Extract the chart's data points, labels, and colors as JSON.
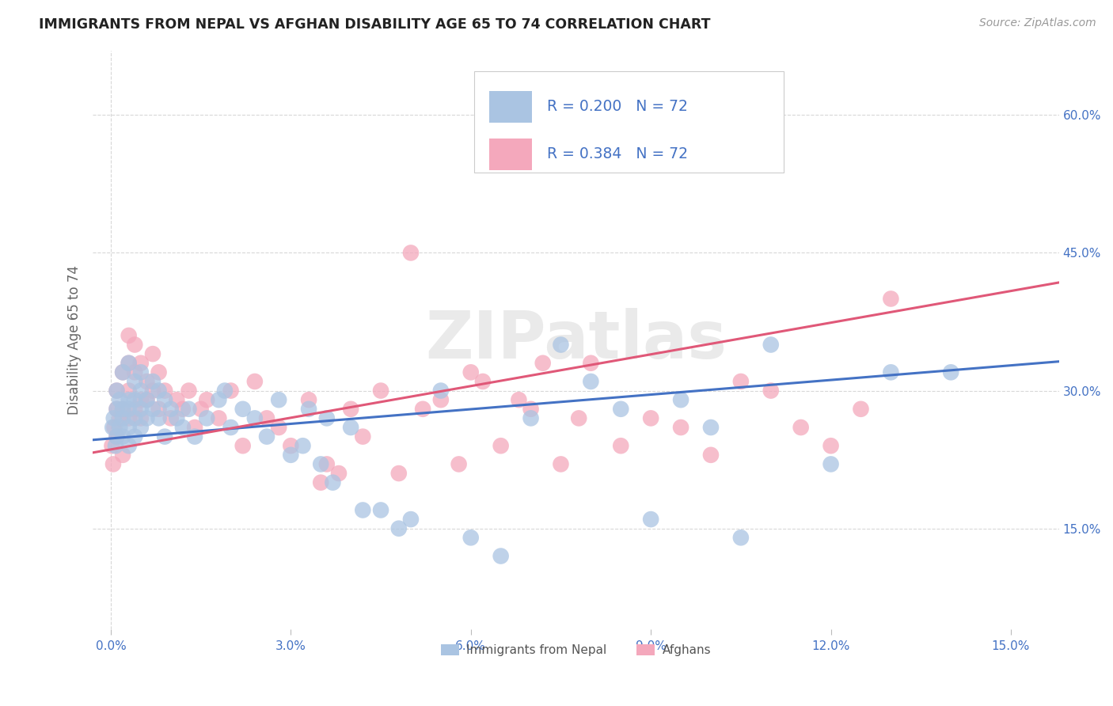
{
  "title": "IMMIGRANTS FROM NEPAL VS AFGHAN DISABILITY AGE 65 TO 74 CORRELATION CHART",
  "source": "Source: ZipAtlas.com",
  "ylabel": "Disability Age 65 to 74",
  "xlabel_ticks": [
    0.0,
    0.03,
    0.06,
    0.09,
    0.12,
    0.15
  ],
  "xlabel_labels": [
    "0.0%",
    "3.0%",
    "6.0%",
    "9.0%",
    "12.0%",
    "15.0%"
  ],
  "ylabel_ticks": [
    0.15,
    0.3,
    0.45,
    0.6
  ],
  "ylabel_labels": [
    "15.0%",
    "30.0%",
    "45.0%",
    "60.0%"
  ],
  "xlim": [
    -0.003,
    0.158
  ],
  "ylim": [
    0.04,
    0.67
  ],
  "nepal_R": 0.2,
  "afghan_R": 0.384,
  "N": 72,
  "nepal_color": "#aac4e2",
  "afghan_color": "#f4a8bc",
  "nepal_line_color": "#4472c4",
  "afghan_line_color": "#e05878",
  "nepal_intercept": 0.248,
  "nepal_slope": 0.53,
  "afghan_intercept": 0.236,
  "afghan_slope": 1.15,
  "nepal_x": [
    0.0003,
    0.0005,
    0.0008,
    0.001,
    0.001,
    0.001,
    0.0015,
    0.0015,
    0.002,
    0.002,
    0.002,
    0.002,
    0.003,
    0.003,
    0.003,
    0.003,
    0.003,
    0.004,
    0.004,
    0.004,
    0.004,
    0.005,
    0.005,
    0.005,
    0.005,
    0.006,
    0.006,
    0.007,
    0.007,
    0.008,
    0.008,
    0.009,
    0.009,
    0.01,
    0.011,
    0.012,
    0.013,
    0.014,
    0.016,
    0.018,
    0.019,
    0.02,
    0.022,
    0.024,
    0.026,
    0.028,
    0.03,
    0.033,
    0.036,
    0.04,
    0.042,
    0.045,
    0.048,
    0.05,
    0.032,
    0.035,
    0.037,
    0.055,
    0.06,
    0.065,
    0.07,
    0.075,
    0.08,
    0.085,
    0.09,
    0.095,
    0.1,
    0.105,
    0.11,
    0.12,
    0.13,
    0.14
  ],
  "nepal_y": [
    0.26,
    0.27,
    0.24,
    0.28,
    0.25,
    0.3,
    0.29,
    0.26,
    0.32,
    0.28,
    0.25,
    0.27,
    0.33,
    0.29,
    0.26,
    0.28,
    0.24,
    0.31,
    0.29,
    0.27,
    0.25,
    0.3,
    0.28,
    0.32,
    0.26,
    0.29,
    0.27,
    0.31,
    0.28,
    0.3,
    0.27,
    0.29,
    0.25,
    0.28,
    0.27,
    0.26,
    0.28,
    0.25,
    0.27,
    0.29,
    0.3,
    0.26,
    0.28,
    0.27,
    0.25,
    0.29,
    0.23,
    0.28,
    0.27,
    0.26,
    0.17,
    0.17,
    0.15,
    0.16,
    0.24,
    0.22,
    0.2,
    0.3,
    0.14,
    0.12,
    0.27,
    0.35,
    0.31,
    0.28,
    0.16,
    0.29,
    0.26,
    0.14,
    0.35,
    0.22,
    0.32,
    0.32
  ],
  "afghan_x": [
    0.0002,
    0.0004,
    0.0006,
    0.001,
    0.001,
    0.001,
    0.0015,
    0.002,
    0.002,
    0.002,
    0.003,
    0.003,
    0.003,
    0.003,
    0.004,
    0.004,
    0.004,
    0.005,
    0.005,
    0.005,
    0.006,
    0.006,
    0.007,
    0.007,
    0.008,
    0.008,
    0.009,
    0.01,
    0.011,
    0.012,
    0.013,
    0.014,
    0.015,
    0.016,
    0.018,
    0.02,
    0.022,
    0.024,
    0.026,
    0.028,
    0.03,
    0.033,
    0.036,
    0.04,
    0.045,
    0.05,
    0.055,
    0.06,
    0.065,
    0.07,
    0.075,
    0.08,
    0.085,
    0.09,
    0.095,
    0.1,
    0.105,
    0.11,
    0.115,
    0.12,
    0.125,
    0.13,
    0.035,
    0.038,
    0.042,
    0.048,
    0.052,
    0.058,
    0.062,
    0.068,
    0.072,
    0.078
  ],
  "afghan_y": [
    0.24,
    0.22,
    0.26,
    0.28,
    0.25,
    0.3,
    0.27,
    0.32,
    0.28,
    0.23,
    0.33,
    0.3,
    0.27,
    0.36,
    0.28,
    0.32,
    0.35,
    0.29,
    0.33,
    0.27,
    0.31,
    0.29,
    0.34,
    0.3,
    0.28,
    0.32,
    0.3,
    0.27,
    0.29,
    0.28,
    0.3,
    0.26,
    0.28,
    0.29,
    0.27,
    0.3,
    0.24,
    0.31,
    0.27,
    0.26,
    0.24,
    0.29,
    0.22,
    0.28,
    0.3,
    0.45,
    0.29,
    0.32,
    0.24,
    0.28,
    0.22,
    0.33,
    0.24,
    0.27,
    0.26,
    0.23,
    0.31,
    0.3,
    0.26,
    0.24,
    0.28,
    0.4,
    0.2,
    0.21,
    0.25,
    0.21,
    0.28,
    0.22,
    0.31,
    0.29,
    0.33,
    0.27
  ],
  "legend_nepal_label": "Immigrants from Nepal",
  "legend_afghan_label": "Afghans",
  "watermark": "ZIPatlas",
  "background_color": "#ffffff",
  "grid_color": "#d8d8d8"
}
